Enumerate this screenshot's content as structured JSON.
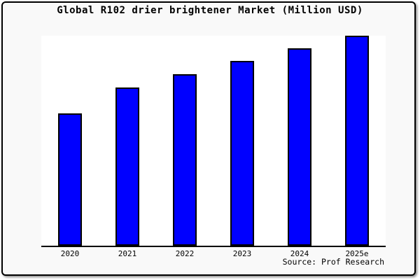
{
  "title": "Global R102 drier brightener Market (Million USD)",
  "source_note": "Source: Prof Research",
  "colors": {
    "bar_fill": "#0000ff",
    "bar_outline": "#000000",
    "canvas_background": "#f9f9f9",
    "plot_background": "#ffffff",
    "axis_line": "#000000",
    "frame_border": "#000000",
    "text": "#000000"
  },
  "chart_data": {
    "type": "bar",
    "title": "Global R102 drier brightener Market (Million USD)",
    "categories": [
      "2020",
      "2021",
      "2022",
      "2023",
      "2024",
      "2025e"
    ],
    "values": [
      63,
      75.3,
      81.7,
      88,
      94,
      100
    ],
    "xlabel": "",
    "ylabel": "",
    "ylim": [
      0,
      100
    ],
    "grid": false,
    "legend": false,
    "y_axis_labels_visible": false,
    "bar_color": "#0000ff",
    "annotation": "Source: Prof Research"
  }
}
